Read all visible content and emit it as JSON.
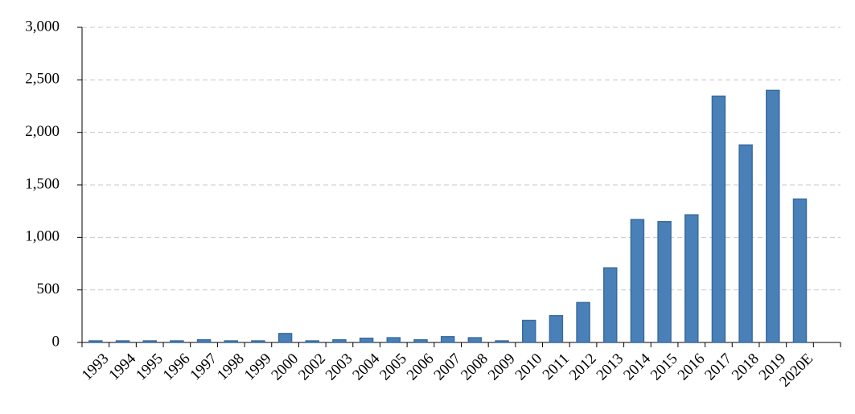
{
  "chart_data": {
    "type": "bar",
    "categories": [
      "1993",
      "1994",
      "1995",
      "1996",
      "1997",
      "1998",
      "1999",
      "2000",
      "2002",
      "2003",
      "2004",
      "2005",
      "2006",
      "2007",
      "2008",
      "2009",
      "2010",
      "2011",
      "2012",
      "2013",
      "2014",
      "2015",
      "2016",
      "2017",
      "2018",
      "2019",
      "2020E",
      null
    ],
    "values": [
      15,
      15,
      15,
      15,
      25,
      15,
      15,
      85,
      15,
      25,
      40,
      45,
      25,
      55,
      45,
      15,
      210,
      255,
      380,
      710,
      1170,
      1150,
      1215,
      2345,
      1880,
      2400,
      1365,
      null
    ],
    "color": "#4a80b8",
    "ylim": [
      0,
      3000
    ],
    "yticks": [
      0,
      500,
      {
        "value": 1000,
        "label": "1,000"
      },
      {
        "value": 1500,
        "label": "1,500"
      },
      {
        "value": 2000,
        "label": "2,000"
      },
      {
        "value": 2500,
        "label": "2,500"
      },
      {
        "value": 3000,
        "label": "3,000"
      }
    ],
    "grid": true
  }
}
